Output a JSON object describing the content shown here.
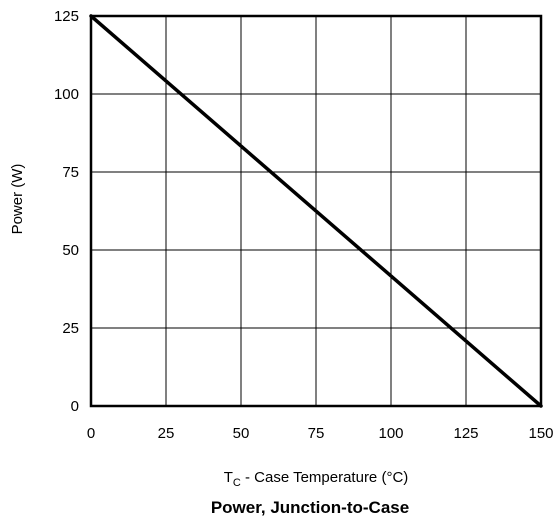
{
  "chart_data": {
    "type": "line",
    "title": "Power, Junction-to-Case",
    "xlabel": {
      "symbol": "T",
      "subscript": "C",
      "text": " - Case Temperature (°C)"
    },
    "ylabel": "Power (W)",
    "xlim": [
      0,
      150
    ],
    "ylim": [
      0,
      125
    ],
    "x_ticks": [
      "0",
      "25",
      "50",
      "75",
      "100",
      "125",
      "150"
    ],
    "y_ticks": [
      "0",
      "25",
      "50",
      "75",
      "100",
      "125"
    ],
    "grid": true,
    "series": [
      {
        "x": [
          0,
          150
        ],
        "y": [
          125,
          0
        ],
        "color": "#000000"
      }
    ]
  }
}
